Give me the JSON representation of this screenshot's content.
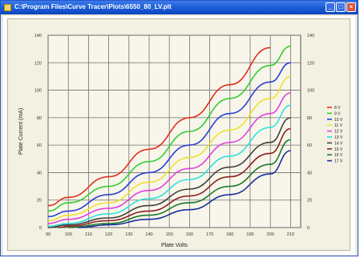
{
  "window": {
    "title": "C:\\Program Files\\Curve Tracer\\Plots\\6550_80_LV.plt",
    "minimize_label": "_",
    "maximize_label": "□",
    "close_label": "×"
  },
  "chart_data": {
    "type": "line",
    "xlabel": "Plate Volts",
    "ylabel": "Plate Current (mA)",
    "xlim": [
      90,
      215
    ],
    "ylim": [
      0,
      140
    ],
    "x_ticks": [
      90,
      100,
      110,
      120,
      130,
      140,
      150,
      160,
      170,
      180,
      190,
      200,
      210
    ],
    "y_ticks": [
      0,
      20,
      40,
      60,
      80,
      100,
      120,
      140
    ],
    "grid": true,
    "legend_position": "right",
    "series": [
      {
        "name": "8 V",
        "color": "#e03020",
        "points": [
          [
            90,
            16
          ],
          [
            100,
            22
          ],
          [
            120,
            37
          ],
          [
            140,
            57
          ],
          [
            160,
            80
          ],
          [
            180,
            104
          ],
          [
            200,
            131
          ]
        ]
      },
      {
        "name": "9 V",
        "color": "#33cc33",
        "points": [
          [
            90,
            12
          ],
          [
            100,
            18
          ],
          [
            120,
            30
          ],
          [
            140,
            48
          ],
          [
            160,
            70
          ],
          [
            180,
            94
          ],
          [
            200,
            118
          ],
          [
            210,
            132
          ]
        ]
      },
      {
        "name": "10 V",
        "color": "#2a3fd6",
        "points": [
          [
            90,
            8
          ],
          [
            100,
            12
          ],
          [
            120,
            24
          ],
          [
            140,
            40
          ],
          [
            160,
            60
          ],
          [
            180,
            83
          ],
          [
            200,
            106
          ],
          [
            210,
            120
          ]
        ]
      },
      {
        "name": "11 V",
        "color": "#f0e030",
        "points": [
          [
            90,
            5
          ],
          [
            100,
            9
          ],
          [
            120,
            18
          ],
          [
            140,
            33
          ],
          [
            160,
            51
          ],
          [
            180,
            71
          ],
          [
            200,
            94
          ],
          [
            210,
            110
          ]
        ]
      },
      {
        "name": "12 V",
        "color": "#e040e0",
        "points": [
          [
            90,
            3
          ],
          [
            100,
            6
          ],
          [
            120,
            14
          ],
          [
            140,
            27
          ],
          [
            160,
            43
          ],
          [
            180,
            62
          ],
          [
            200,
            83
          ],
          [
            210,
            98
          ]
        ]
      },
      {
        "name": "13 V",
        "color": "#30e0e0",
        "points": [
          [
            90,
            1
          ],
          [
            100,
            3
          ],
          [
            120,
            10
          ],
          [
            140,
            21
          ],
          [
            160,
            35
          ],
          [
            180,
            52
          ],
          [
            200,
            73
          ],
          [
            210,
            89
          ]
        ]
      },
      {
        "name": "14 V",
        "color": "#404040",
        "points": [
          [
            90,
            0
          ],
          [
            100,
            2
          ],
          [
            120,
            7
          ],
          [
            140,
            16
          ],
          [
            160,
            28
          ],
          [
            180,
            44
          ],
          [
            200,
            62
          ],
          [
            210,
            80
          ]
        ]
      },
      {
        "name": "15 V",
        "color": "#8b2020",
        "points": [
          [
            95,
            0
          ],
          [
            100,
            1
          ],
          [
            120,
            5
          ],
          [
            140,
            12
          ],
          [
            160,
            23
          ],
          [
            180,
            37
          ],
          [
            200,
            54
          ],
          [
            210,
            72
          ]
        ]
      },
      {
        "name": "16 V",
        "color": "#1c7a2a",
        "points": [
          [
            100,
            0
          ],
          [
            120,
            3
          ],
          [
            140,
            9
          ],
          [
            160,
            18
          ],
          [
            180,
            30
          ],
          [
            200,
            46
          ],
          [
            210,
            64
          ]
        ]
      },
      {
        "name": "17 V",
        "color": "#1a2ea0",
        "points": [
          [
            105,
            0
          ],
          [
            120,
            2
          ],
          [
            140,
            6
          ],
          [
            160,
            13
          ],
          [
            180,
            24
          ],
          [
            200,
            39
          ],
          [
            210,
            56
          ]
        ]
      }
    ]
  }
}
